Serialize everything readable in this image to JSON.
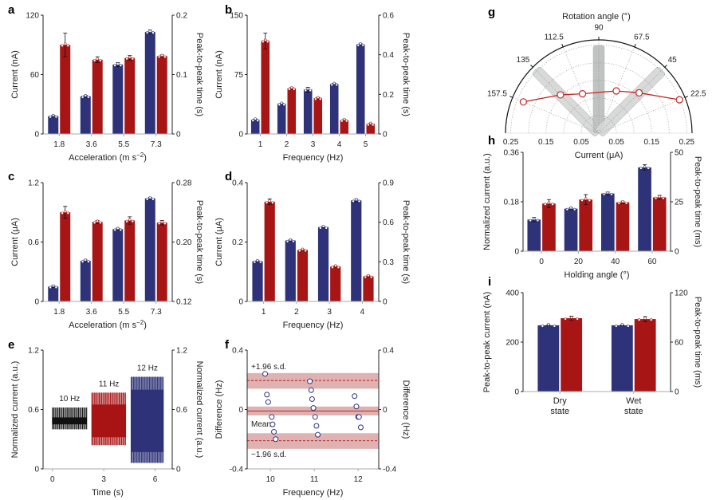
{
  "figure": {
    "colors": {
      "current": "#2e3278",
      "time": "#a81515",
      "band": "#d9a3a3",
      "trace_10": "#111111",
      "trace_11": "#a81515",
      "trace_12": "#2e3278"
    }
  },
  "chart_data": [
    {
      "panel": "a",
      "type": "bar",
      "xlabel": "Acceleration (m s",
      "xlabel_sup": "−2",
      "xlabel_end": ")",
      "ylabel": "Current (nA)",
      "ylabel_right": "Peak-to-peak time (s)",
      "categories": [
        "1.8",
        "3.6",
        "5.5",
        "7.3"
      ],
      "ylim": [
        0,
        120
      ],
      "yticks": [
        "0",
        "60",
        "120"
      ],
      "ylim_right": [
        0,
        0.2
      ],
      "yticks_right": [
        "0",
        "0.1",
        "0.2"
      ],
      "series": [
        {
          "axis": "left",
          "values": [
            18,
            38,
            70,
            103
          ],
          "err": [
            1,
            1,
            2,
            2
          ]
        },
        {
          "axis": "right",
          "values": [
            0.15,
            0.125,
            0.128,
            0.131
          ],
          "err": [
            0.02,
            0.005,
            0.004,
            0.002
          ]
        }
      ]
    },
    {
      "panel": "b",
      "type": "bar",
      "xlabel": "Frequency (Hz)",
      "ylabel": "Current (nA)",
      "ylabel_right": "Peak-to-peak time (s)",
      "categories": [
        "1",
        "2",
        "3",
        "4",
        "5"
      ],
      "ylim": [
        0,
        150
      ],
      "yticks": [
        "0",
        "75",
        "150"
      ],
      "ylim_right": [
        0,
        0.6
      ],
      "yticks_right": [
        "0",
        "0.2",
        "0.4",
        "0.6"
      ],
      "series": [
        {
          "axis": "left",
          "values": [
            18,
            38,
            56,
            63,
            113
          ],
          "err": [
            1,
            1,
            3,
            1,
            1
          ]
        },
        {
          "axis": "right",
          "values": [
            0.47,
            0.23,
            0.18,
            0.07,
            0.05
          ],
          "err": [
            0.04,
            0.005,
            0.004,
            0.003,
            0.003
          ]
        }
      ]
    },
    {
      "panel": "c",
      "type": "bar",
      "xlabel": "Acceleration (m s",
      "xlabel_sup": "−2",
      "xlabel_end": ")",
      "ylabel": "Current (μA)",
      "ylabel_right": "Peak-to-peak time (s)",
      "categories": [
        "1.8",
        "3.6",
        "5.5",
        "7.3"
      ],
      "ylim": [
        0,
        1.2
      ],
      "yticks": [
        "0",
        "0.6",
        "1.2"
      ],
      "ylim_right": [
        0.12,
        0.28
      ],
      "yticks_right": [
        "0.12",
        "0.20",
        "0.28"
      ],
      "series": [
        {
          "axis": "left",
          "values": [
            0.15,
            0.41,
            0.73,
            1.04
          ],
          "err": [
            0.01,
            0.01,
            0.01,
            0.01
          ]
        },
        {
          "axis": "right",
          "values": [
            0.24,
            0.227,
            0.229,
            0.226
          ],
          "err": [
            0.008,
            0.002,
            0.005,
            0.003
          ]
        }
      ]
    },
    {
      "panel": "d",
      "type": "bar",
      "xlabel": "Frequency (Hz)",
      "ylabel": "Current (μA)",
      "ylabel_right": "Peak-to-peak time (s)",
      "categories": [
        "1",
        "2",
        "3",
        "4"
      ],
      "ylim": [
        0,
        0.4
      ],
      "yticks": [
        "0",
        "0.2",
        "0.4"
      ],
      "ylim_right": [
        0,
        0.9
      ],
      "yticks_right": [
        "0",
        "0.3",
        "0.6",
        "0.9"
      ],
      "series": [
        {
          "axis": "left",
          "values": [
            0.135,
            0.205,
            0.25,
            0.34
          ],
          "err": [
            0.002,
            0.003,
            0.002,
            0.005
          ]
        },
        {
          "axis": "right",
          "values": [
            0.755,
            0.39,
            0.264,
            0.19
          ],
          "err": [
            0.02,
            0.004,
            0.004,
            0.004
          ]
        }
      ]
    },
    {
      "panel": "e",
      "type": "line",
      "xlabel": "Time (s)",
      "ylabel": "Normalized current (a.u.)",
      "ylabel_right": "Normalized current (a.u.)",
      "xlim": [
        -0.55,
        7.0
      ],
      "xticks": [
        "0",
        "3",
        "6"
      ],
      "ylim": [
        0,
        1.2
      ],
      "yticks": [
        "0",
        "0.6",
        "1.2"
      ],
      "yticks_right": [
        "0",
        "0.6",
        "1.2"
      ],
      "traces": [
        {
          "label": "10 Hz",
          "freq": 10,
          "t_start": 0.0,
          "t_end": 2.0,
          "min": 0.4,
          "max": 0.62,
          "core_min": 0.45,
          "core_max": 0.52,
          "color": "#111111"
        },
        {
          "label": "11 Hz",
          "freq": 11,
          "t_start": 2.3,
          "t_end": 4.3,
          "min": 0.24,
          "max": 0.77,
          "core_min": 0.32,
          "core_max": 0.65,
          "color": "#a81515"
        },
        {
          "label": "12 Hz",
          "freq": 12,
          "t_start": 4.6,
          "t_end": 6.5,
          "min": 0.06,
          "max": 0.93,
          "core_min": 0.17,
          "core_max": 0.8,
          "color": "#2e3278"
        }
      ]
    },
    {
      "panel": "f",
      "type": "scatter",
      "xlabel": "Frequency (Hz)",
      "ylabel": "Difference (Hz)",
      "ylabel_right": "Difference (Hz)",
      "xlim": [
        9.47,
        12.47
      ],
      "xticks": [
        "10",
        "11",
        "12"
      ],
      "ylim": [
        -0.4,
        0.4
      ],
      "yticks": [
        "-0.4",
        "0",
        "0.4"
      ],
      "yticks_right": [
        "-0.4",
        "0",
        "0.4"
      ],
      "points": [
        [
          9.88,
          0.24
        ],
        [
          9.92,
          0.1
        ],
        [
          9.95,
          0.05
        ],
        [
          10.03,
          -0.05
        ],
        [
          10.05,
          -0.1
        ],
        [
          10.08,
          -0.15
        ],
        [
          10.12,
          -0.2
        ],
        [
          10.9,
          0.19
        ],
        [
          10.93,
          0.13
        ],
        [
          10.95,
          0.07
        ],
        [
          10.98,
          0.01
        ],
        [
          11.02,
          -0.05
        ],
        [
          11.05,
          -0.11
        ],
        [
          11.08,
          -0.17
        ],
        [
          11.92,
          0.09
        ],
        [
          11.96,
          0.02
        ],
        [
          12.0,
          -0.05
        ],
        [
          12.02,
          -0.05
        ],
        [
          12.06,
          -0.12
        ]
      ],
      "reference_lines": [
        {
          "label": "+1.96 s.d.",
          "value": 0.195,
          "band": [
            0.14,
            0.245
          ],
          "style": "dashed"
        },
        {
          "label": "Mean",
          "value": -0.01,
          "band": [
            -0.04,
            0.02
          ],
          "style": "solid"
        },
        {
          "label": "−1.96 s.d.",
          "value": -0.21,
          "band": [
            -0.265,
            -0.16
          ],
          "style": "dashed"
        }
      ]
    },
    {
      "panel": "g",
      "type": "polar",
      "title": "Rotation angle (°)",
      "xlabel": "Current (μA)",
      "angle_labels": [
        "22.5",
        "45",
        "67.5",
        "90",
        "112.5",
        "135",
        "157.5"
      ],
      "radial_ticks": [
        "0.25",
        "0.15",
        "0.05",
        "0.05",
        "0.15",
        "0.25"
      ],
      "rlim": [
        0,
        0.265
      ],
      "angles": [
        157.5,
        135,
        112.5,
        67.5,
        45,
        22.5
      ],
      "values": [
        0.232,
        0.154,
        0.121,
        0.13,
        0.162,
        0.248
      ]
    },
    {
      "panel": "h",
      "type": "bar",
      "xlabel": "Holding angle (°)",
      "ylabel": "Normalized current (a.u.)",
      "ylabel_right": "Peak-to-peak time (ms)",
      "categories": [
        "0",
        "20",
        "40",
        "60"
      ],
      "ylim": [
        0,
        0.36
      ],
      "yticks": [
        "0",
        "0.18",
        "0.36"
      ],
      "ylim_right": [
        0,
        50
      ],
      "yticks_right": [
        "0",
        "25",
        "50"
      ],
      "series": [
        {
          "axis": "left",
          "values": [
            0.115,
            0.155,
            0.21,
            0.305
          ],
          "err": [
            0.008,
            0.004,
            0.005,
            0.01
          ]
        },
        {
          "axis": "right",
          "values": [
            24.1,
            26.1,
            24.7,
            27.2
          ],
          "err": [
            2,
            2.5,
            0.6,
            1
          ]
        }
      ]
    },
    {
      "panel": "i",
      "type": "bar",
      "xlabel": "",
      "ylabel": "Peak-to-peak current (nA)",
      "ylabel_right": "Peak-to-peak time (ms)",
      "categories": [
        [
          "Dry",
          "state"
        ],
        [
          "Wet",
          "state"
        ]
      ],
      "ylim": [
        0,
        400
      ],
      "yticks": [
        "0",
        "200",
        "400"
      ],
      "ylim_right": [
        0,
        120
      ],
      "yticks_right": [
        "0",
        "60",
        "120"
      ],
      "series": [
        {
          "axis": "left",
          "values": [
            268,
            268
          ],
          "err": [
            2,
            2
          ]
        },
        {
          "axis": "right",
          "values": [
            89,
            88
          ],
          "err": [
            2.5,
            3
          ]
        }
      ]
    }
  ]
}
